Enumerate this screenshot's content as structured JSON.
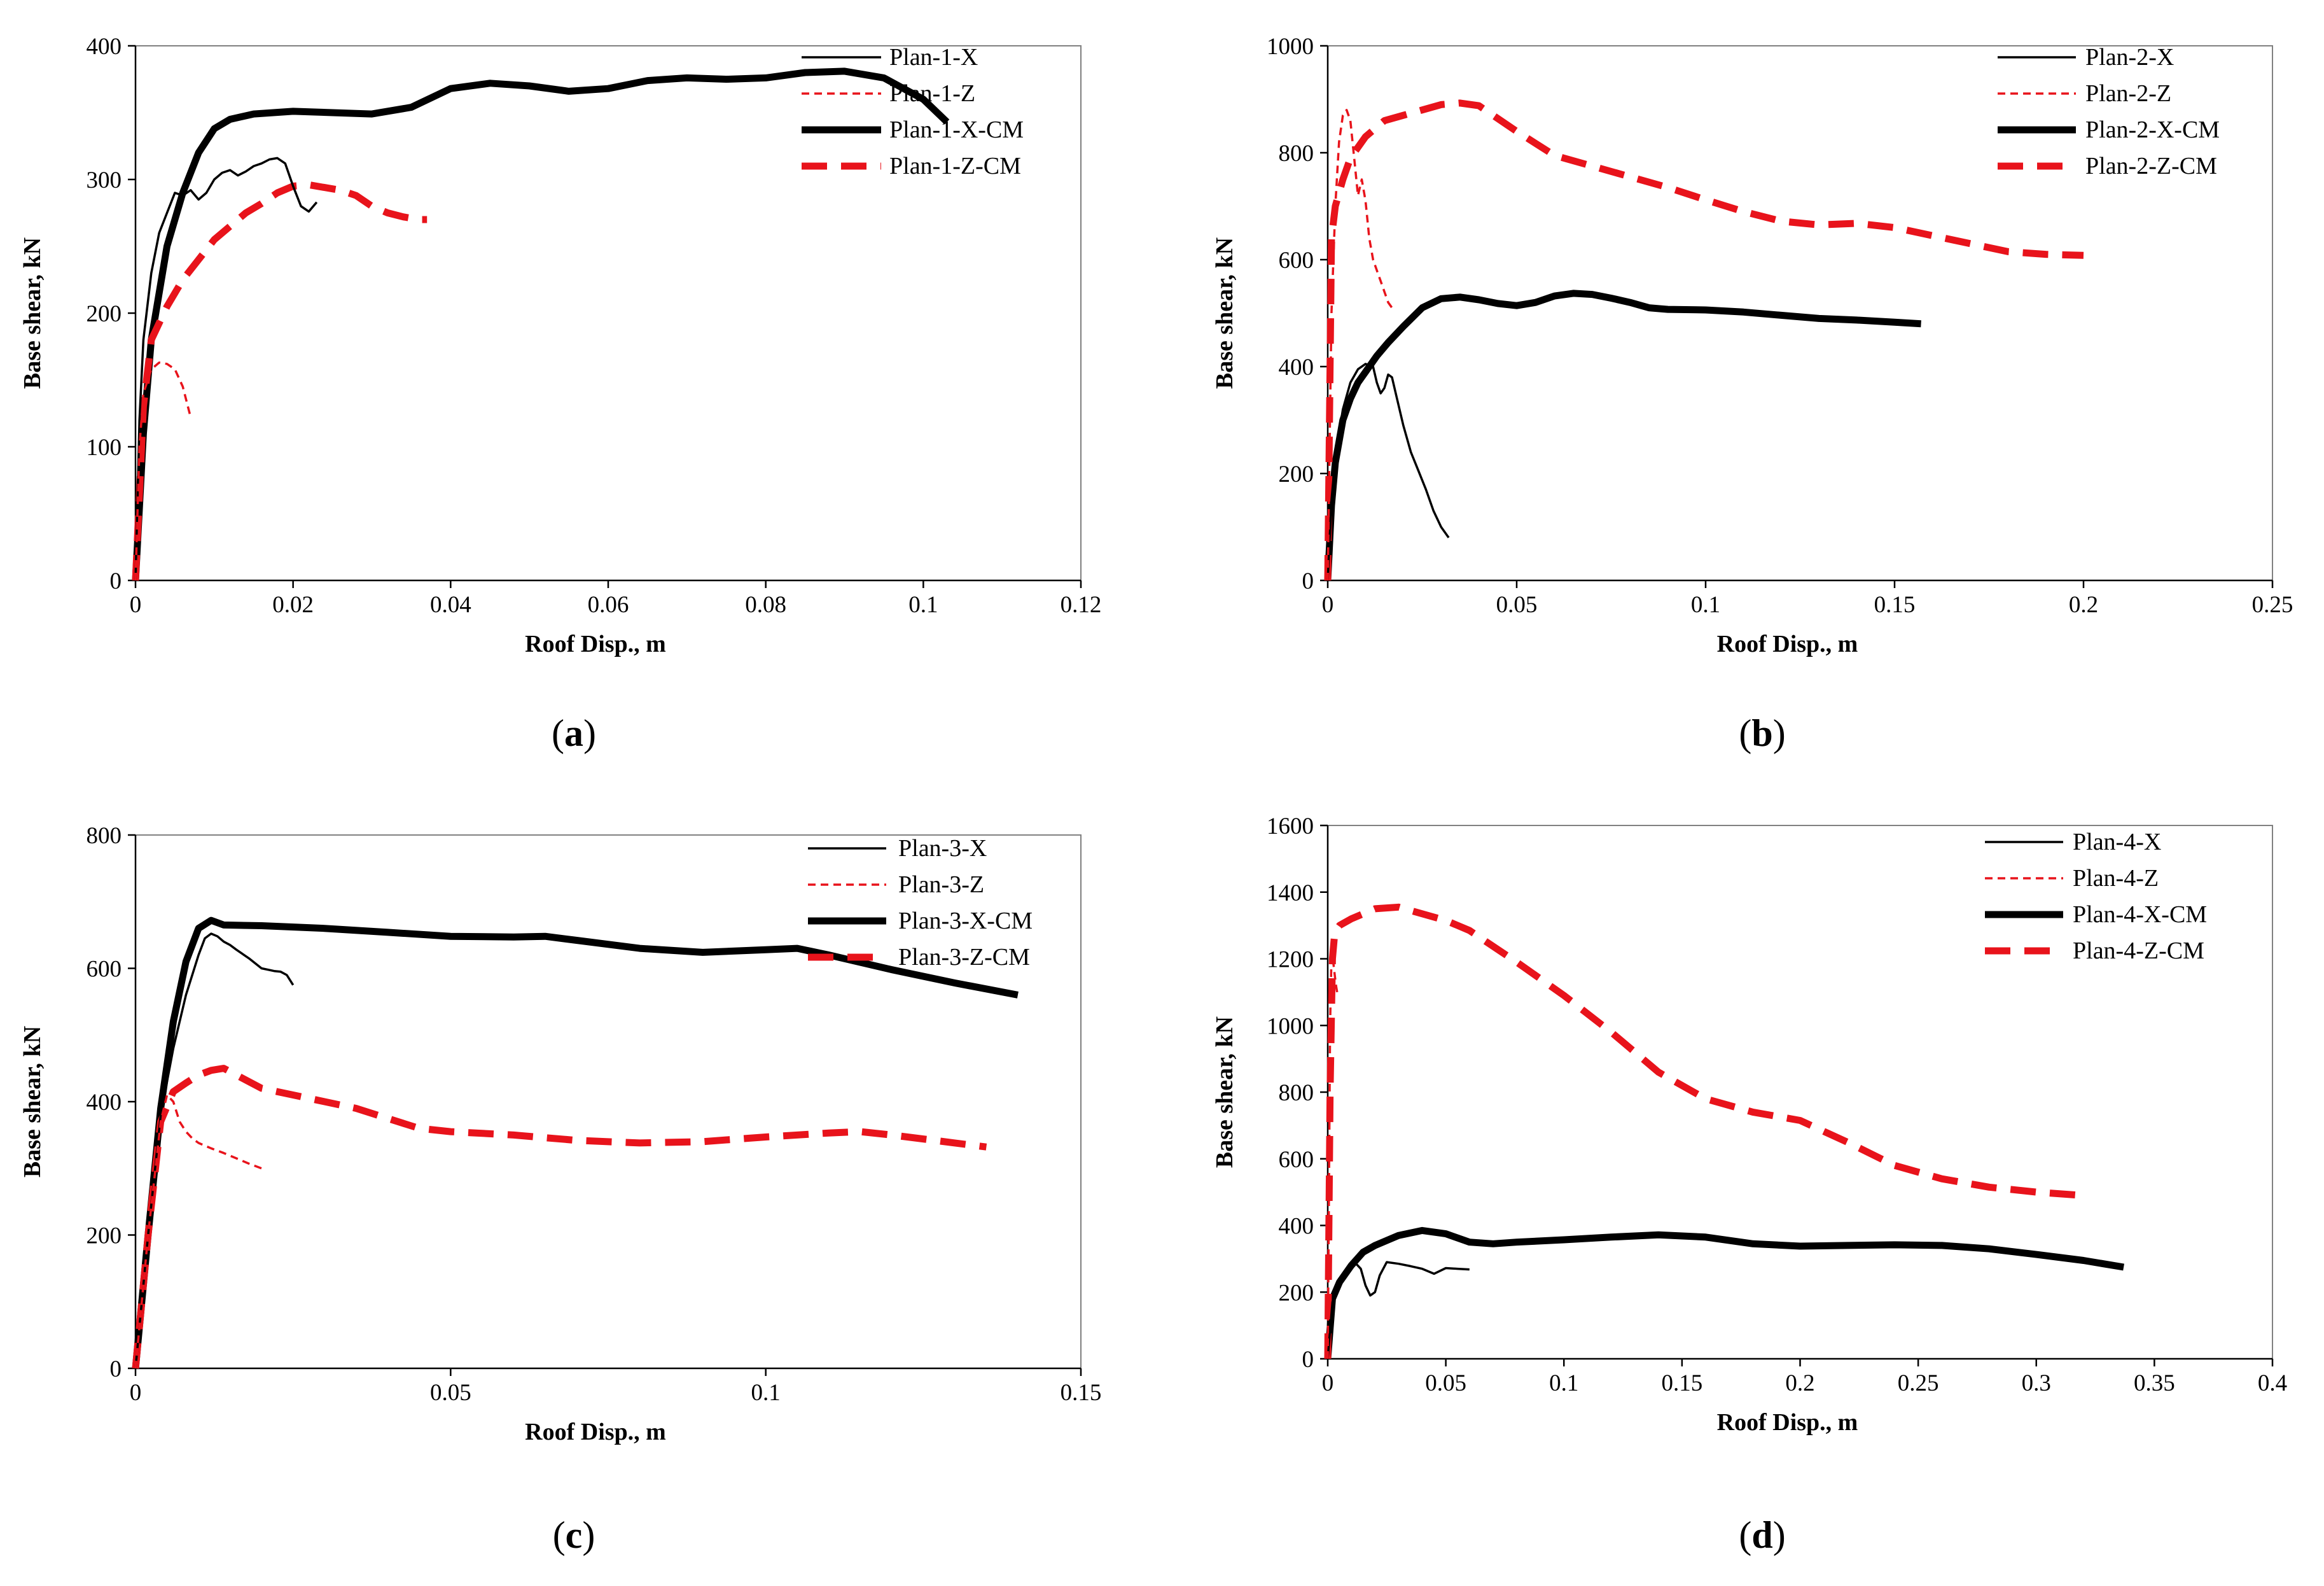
{
  "chart_data": [
    {
      "type": "line",
      "caption": "a",
      "xlabel": "Roof Disp., m",
      "ylabel": "Base shear, kN",
      "xlim": [
        0,
        0.12
      ],
      "ylim": [
        0,
        400
      ],
      "xticks": [
        0,
        0.02,
        0.04,
        0.06,
        0.08,
        0.1,
        0.12
      ],
      "yticks": [
        0,
        100,
        200,
        300,
        400
      ],
      "xtick_labels": [
        "0",
        "0.02",
        "0.04",
        "0.06",
        "0.08",
        "0.1",
        "0.12"
      ],
      "ytick_labels": [
        "0",
        "100",
        "200",
        "300",
        "400"
      ],
      "grid": false,
      "legend": "top-right",
      "series": [
        {
          "name": "Plan-1-X",
          "style": "thin-solid",
          "color": "#000000",
          "x": [
            0,
            0.0005,
            0.001,
            0.002,
            0.003,
            0.004,
            0.005,
            0.006,
            0.007,
            0.008,
            0.009,
            0.01,
            0.011,
            0.012,
            0.013,
            0.014,
            0.015,
            0.016,
            0.017,
            0.018,
            0.019,
            0.02,
            0.021,
            0.022,
            0.023
          ],
          "y": [
            0,
            120,
            180,
            230,
            260,
            275,
            290,
            288,
            292,
            285,
            290,
            300,
            305,
            307,
            303,
            306,
            310,
            312,
            315,
            316,
            312,
            295,
            280,
            276,
            283
          ]
        },
        {
          "name": "Plan-1-Z",
          "style": "thin-dashed",
          "color": "#e8131b",
          "x": [
            0,
            0.0005,
            0.001,
            0.002,
            0.003,
            0.004,
            0.005,
            0.006,
            0.007
          ],
          "y": [
            0,
            100,
            140,
            158,
            163,
            162,
            158,
            145,
            122
          ]
        },
        {
          "name": "Plan-1-X-CM",
          "style": "thick-solid",
          "color": "#000000",
          "x": [
            0,
            0.001,
            0.002,
            0.004,
            0.006,
            0.008,
            0.01,
            0.012,
            0.015,
            0.02,
            0.025,
            0.03,
            0.035,
            0.04,
            0.045,
            0.05,
            0.055,
            0.06,
            0.065,
            0.07,
            0.075,
            0.08,
            0.085,
            0.09,
            0.095,
            0.1,
            0.103
          ],
          "y": [
            0,
            110,
            180,
            250,
            290,
            320,
            338,
            345,
            349,
            351,
            350,
            349,
            354,
            368,
            372,
            370,
            366,
            368,
            374,
            376,
            375,
            376,
            380,
            381,
            376,
            360,
            343
          ]
        },
        {
          "name": "Plan-1-Z-CM",
          "style": "thick-dashed",
          "color": "#e8131b",
          "x": [
            0,
            0.001,
            0.002,
            0.004,
            0.006,
            0.008,
            0.01,
            0.012,
            0.014,
            0.016,
            0.018,
            0.02,
            0.022,
            0.024,
            0.026,
            0.028,
            0.03,
            0.032,
            0.034,
            0.036,
            0.037
          ],
          "y": [
            0,
            130,
            180,
            205,
            225,
            240,
            255,
            265,
            275,
            282,
            290,
            295,
            296,
            294,
            292,
            288,
            280,
            275,
            272,
            270,
            270
          ]
        }
      ]
    },
    {
      "type": "line",
      "caption": "b",
      "xlabel": "Roof Disp., m",
      "ylabel": "Base shear, kN",
      "xlim": [
        0,
        0.25
      ],
      "ylim": [
        0,
        1000
      ],
      "xticks": [
        0,
        0.05,
        0.1,
        0.15,
        0.2,
        0.25
      ],
      "yticks": [
        0,
        200,
        400,
        600,
        800,
        1000
      ],
      "xtick_labels": [
        "0",
        "0.05",
        "0.1",
        "0.15",
        "0.2",
        "0.25"
      ],
      "ytick_labels": [
        "0",
        "200",
        "400",
        "600",
        "800",
        "1000"
      ],
      "grid": false,
      "legend": "top-right",
      "series": [
        {
          "name": "Plan-2-X",
          "style": "thin-solid",
          "color": "#000000",
          "x": [
            0,
            0.001,
            0.002,
            0.004,
            0.006,
            0.008,
            0.01,
            0.012,
            0.013,
            0.014,
            0.015,
            0.016,
            0.017,
            0.018,
            0.02,
            0.022,
            0.024,
            0.026,
            0.028,
            0.03,
            0.032
          ],
          "y": [
            0,
            150,
            230,
            320,
            370,
            395,
            405,
            400,
            370,
            350,
            360,
            385,
            380,
            350,
            290,
            240,
            205,
            170,
            130,
            100,
            80
          ]
        },
        {
          "name": "Plan-2-Z",
          "style": "thin-dashed",
          "color": "#e8131b",
          "x": [
            0,
            0.001,
            0.002,
            0.003,
            0.004,
            0.005,
            0.006,
            0.007,
            0.008,
            0.009,
            0.01,
            0.011,
            0.012,
            0.013,
            0.014,
            0.015,
            0.016,
            0.017
          ],
          "y": [
            0,
            500,
            700,
            820,
            870,
            880,
            860,
            790,
            720,
            750,
            710,
            640,
            600,
            580,
            560,
            540,
            520,
            510
          ]
        },
        {
          "name": "Plan-2-X-CM",
          "style": "thick-solid",
          "color": "#000000",
          "x": [
            0,
            0.001,
            0.002,
            0.004,
            0.006,
            0.008,
            0.01,
            0.013,
            0.016,
            0.02,
            0.025,
            0.03,
            0.035,
            0.04,
            0.045,
            0.05,
            0.055,
            0.06,
            0.065,
            0.07,
            0.075,
            0.08,
            0.085,
            0.09,
            0.1,
            0.11,
            0.12,
            0.13,
            0.14,
            0.15,
            0.157
          ],
          "y": [
            0,
            140,
            220,
            300,
            340,
            370,
            390,
            420,
            445,
            475,
            510,
            527,
            530,
            525,
            518,
            514,
            520,
            532,
            537,
            535,
            528,
            520,
            510,
            507,
            506,
            502,
            496,
            490,
            487,
            483,
            480
          ]
        },
        {
          "name": "Plan-2-Z-CM",
          "style": "thick-dashed",
          "color": "#e8131b",
          "x": [
            0,
            0.001,
            0.002,
            0.004,
            0.006,
            0.008,
            0.01,
            0.015,
            0.02,
            0.025,
            0.03,
            0.035,
            0.04,
            0.05,
            0.06,
            0.07,
            0.08,
            0.09,
            0.1,
            0.11,
            0.12,
            0.13,
            0.14,
            0.15,
            0.16,
            0.17,
            0.18,
            0.19,
            0.2
          ],
          "y": [
            0,
            640,
            700,
            750,
            790,
            810,
            830,
            860,
            870,
            880,
            890,
            893,
            888,
            840,
            795,
            775,
            755,
            735,
            712,
            690,
            672,
            665,
            668,
            660,
            645,
            630,
            615,
            610,
            608
          ]
        }
      ]
    },
    {
      "type": "line",
      "caption": "c",
      "xlabel": "Roof Disp., m",
      "ylabel": "Base shear, kN",
      "xlim": [
        0,
        0.15
      ],
      "ylim": [
        0,
        800
      ],
      "xticks": [
        0,
        0.05,
        0.1,
        0.15
      ],
      "yticks": [
        0,
        200,
        400,
        600,
        800
      ],
      "xtick_labels": [
        "0",
        "0.05",
        "0.1",
        "0.15"
      ],
      "ytick_labels": [
        "0",
        "200",
        "400",
        "600",
        "800"
      ],
      "grid": false,
      "legend": "top-right",
      "series": [
        {
          "name": "Plan-3-X",
          "style": "thin-solid",
          "color": "#000000",
          "x": [
            0,
            0.002,
            0.004,
            0.006,
            0.008,
            0.01,
            0.011,
            0.012,
            0.013,
            0.014,
            0.015,
            0.016,
            0.018,
            0.02,
            0.022,
            0.023,
            0.024,
            0.025
          ],
          "y": [
            0,
            200,
            380,
            480,
            560,
            620,
            645,
            652,
            648,
            640,
            635,
            628,
            615,
            600,
            596,
            595,
            590,
            575
          ]
        },
        {
          "name": "Plan-3-Z",
          "style": "thin-dashed",
          "color": "#e8131b",
          "x": [
            0,
            0.002,
            0.004,
            0.005,
            0.006,
            0.007,
            0.008,
            0.009,
            0.01,
            0.012,
            0.014,
            0.016,
            0.018,
            0.02
          ],
          "y": [
            0,
            200,
            370,
            410,
            400,
            370,
            355,
            345,
            338,
            330,
            323,
            315,
            307,
            300
          ]
        },
        {
          "name": "Plan-3-X-CM",
          "style": "thick-solid",
          "color": "#000000",
          "x": [
            0,
            0.002,
            0.004,
            0.006,
            0.008,
            0.01,
            0.012,
            0.014,
            0.02,
            0.03,
            0.04,
            0.05,
            0.06,
            0.065,
            0.07,
            0.08,
            0.09,
            0.1,
            0.105,
            0.11,
            0.12,
            0.13,
            0.14
          ],
          "y": [
            0,
            200,
            390,
            520,
            610,
            660,
            672,
            665,
            664,
            660,
            654,
            648,
            647,
            648,
            642,
            630,
            624,
            628,
            630,
            620,
            598,
            578,
            560
          ]
        },
        {
          "name": "Plan-3-Z-CM",
          "style": "thick-dashed",
          "color": "#e8131b",
          "x": [
            0,
            0.002,
            0.004,
            0.006,
            0.008,
            0.01,
            0.012,
            0.014,
            0.016,
            0.02,
            0.025,
            0.03,
            0.035,
            0.04,
            0.045,
            0.05,
            0.06,
            0.07,
            0.08,
            0.09,
            0.1,
            0.11,
            0.115,
            0.12,
            0.13,
            0.135
          ],
          "y": [
            0,
            200,
            370,
            415,
            428,
            440,
            447,
            450,
            440,
            420,
            410,
            400,
            390,
            375,
            360,
            355,
            350,
            342,
            338,
            340,
            347,
            353,
            355,
            350,
            338,
            332
          ]
        }
      ]
    },
    {
      "type": "line",
      "caption": "d",
      "xlabel": "Roof Disp., m",
      "ylabel": "Base shear, kN",
      "xlim": [
        0,
        0.4
      ],
      "ylim": [
        0,
        1600
      ],
      "xticks": [
        0,
        0.05,
        0.1,
        0.15,
        0.2,
        0.25,
        0.3,
        0.35,
        0.4
      ],
      "yticks": [
        0,
        200,
        400,
        600,
        800,
        1000,
        1200,
        1400,
        1600
      ],
      "xtick_labels": [
        "0",
        "0.05",
        "0.1",
        "0.15",
        "0.2",
        "0.25",
        "0.3",
        "0.35",
        "0.4"
      ],
      "ytick_labels": [
        "0",
        "200",
        "400",
        "600",
        "800",
        "1000",
        "1200",
        "1400",
        "1600"
      ],
      "grid": false,
      "legend": "top-right",
      "series": [
        {
          "name": "Plan-4-X",
          "style": "thin-solid",
          "color": "#000000",
          "x": [
            0,
            0.002,
            0.004,
            0.006,
            0.008,
            0.01,
            0.012,
            0.014,
            0.016,
            0.018,
            0.02,
            0.022,
            0.025,
            0.03,
            0.035,
            0.04,
            0.045,
            0.05,
            0.055,
            0.06
          ],
          "y": [
            0,
            170,
            210,
            235,
            255,
            270,
            285,
            270,
            220,
            190,
            200,
            250,
            290,
            285,
            278,
            270,
            255,
            272,
            270,
            268
          ]
        },
        {
          "name": "Plan-4-Z",
          "style": "thin-dashed",
          "color": "#e8131b",
          "x": [
            0,
            0.0005,
            0.001,
            0.0015,
            0.002,
            0.0025,
            0.003,
            0.0035,
            0.004
          ],
          "y": [
            0,
            500,
            1000,
            1180,
            1210,
            1180,
            1150,
            1120,
            1100
          ]
        },
        {
          "name": "Plan-4-X-CM",
          "style": "thick-solid",
          "color": "#000000",
          "x": [
            0,
            0.002,
            0.005,
            0.01,
            0.015,
            0.02,
            0.03,
            0.04,
            0.05,
            0.06,
            0.07,
            0.08,
            0.1,
            0.12,
            0.14,
            0.16,
            0.18,
            0.2,
            0.22,
            0.24,
            0.26,
            0.28,
            0.3,
            0.32,
            0.337
          ],
          "y": [
            0,
            180,
            230,
            280,
            320,
            340,
            370,
            385,
            375,
            350,
            345,
            350,
            357,
            365,
            372,
            365,
            345,
            338,
            340,
            342,
            340,
            330,
            313,
            295,
            275
          ]
        },
        {
          "name": "Plan-4-Z-CM",
          "style": "thick-dashed",
          "color": "#e8131b",
          "x": [
            0,
            0.001,
            0.002,
            0.003,
            0.005,
            0.01,
            0.02,
            0.03,
            0.05,
            0.06,
            0.08,
            0.1,
            0.12,
            0.14,
            0.16,
            0.18,
            0.2,
            0.22,
            0.24,
            0.26,
            0.28,
            0.3,
            0.32
          ],
          "y": [
            0,
            800,
            1200,
            1280,
            1300,
            1320,
            1350,
            1355,
            1315,
            1285,
            1190,
            1090,
            980,
            860,
            780,
            740,
            715,
            650,
            580,
            540,
            515,
            500,
            490
          ]
        }
      ]
    }
  ]
}
